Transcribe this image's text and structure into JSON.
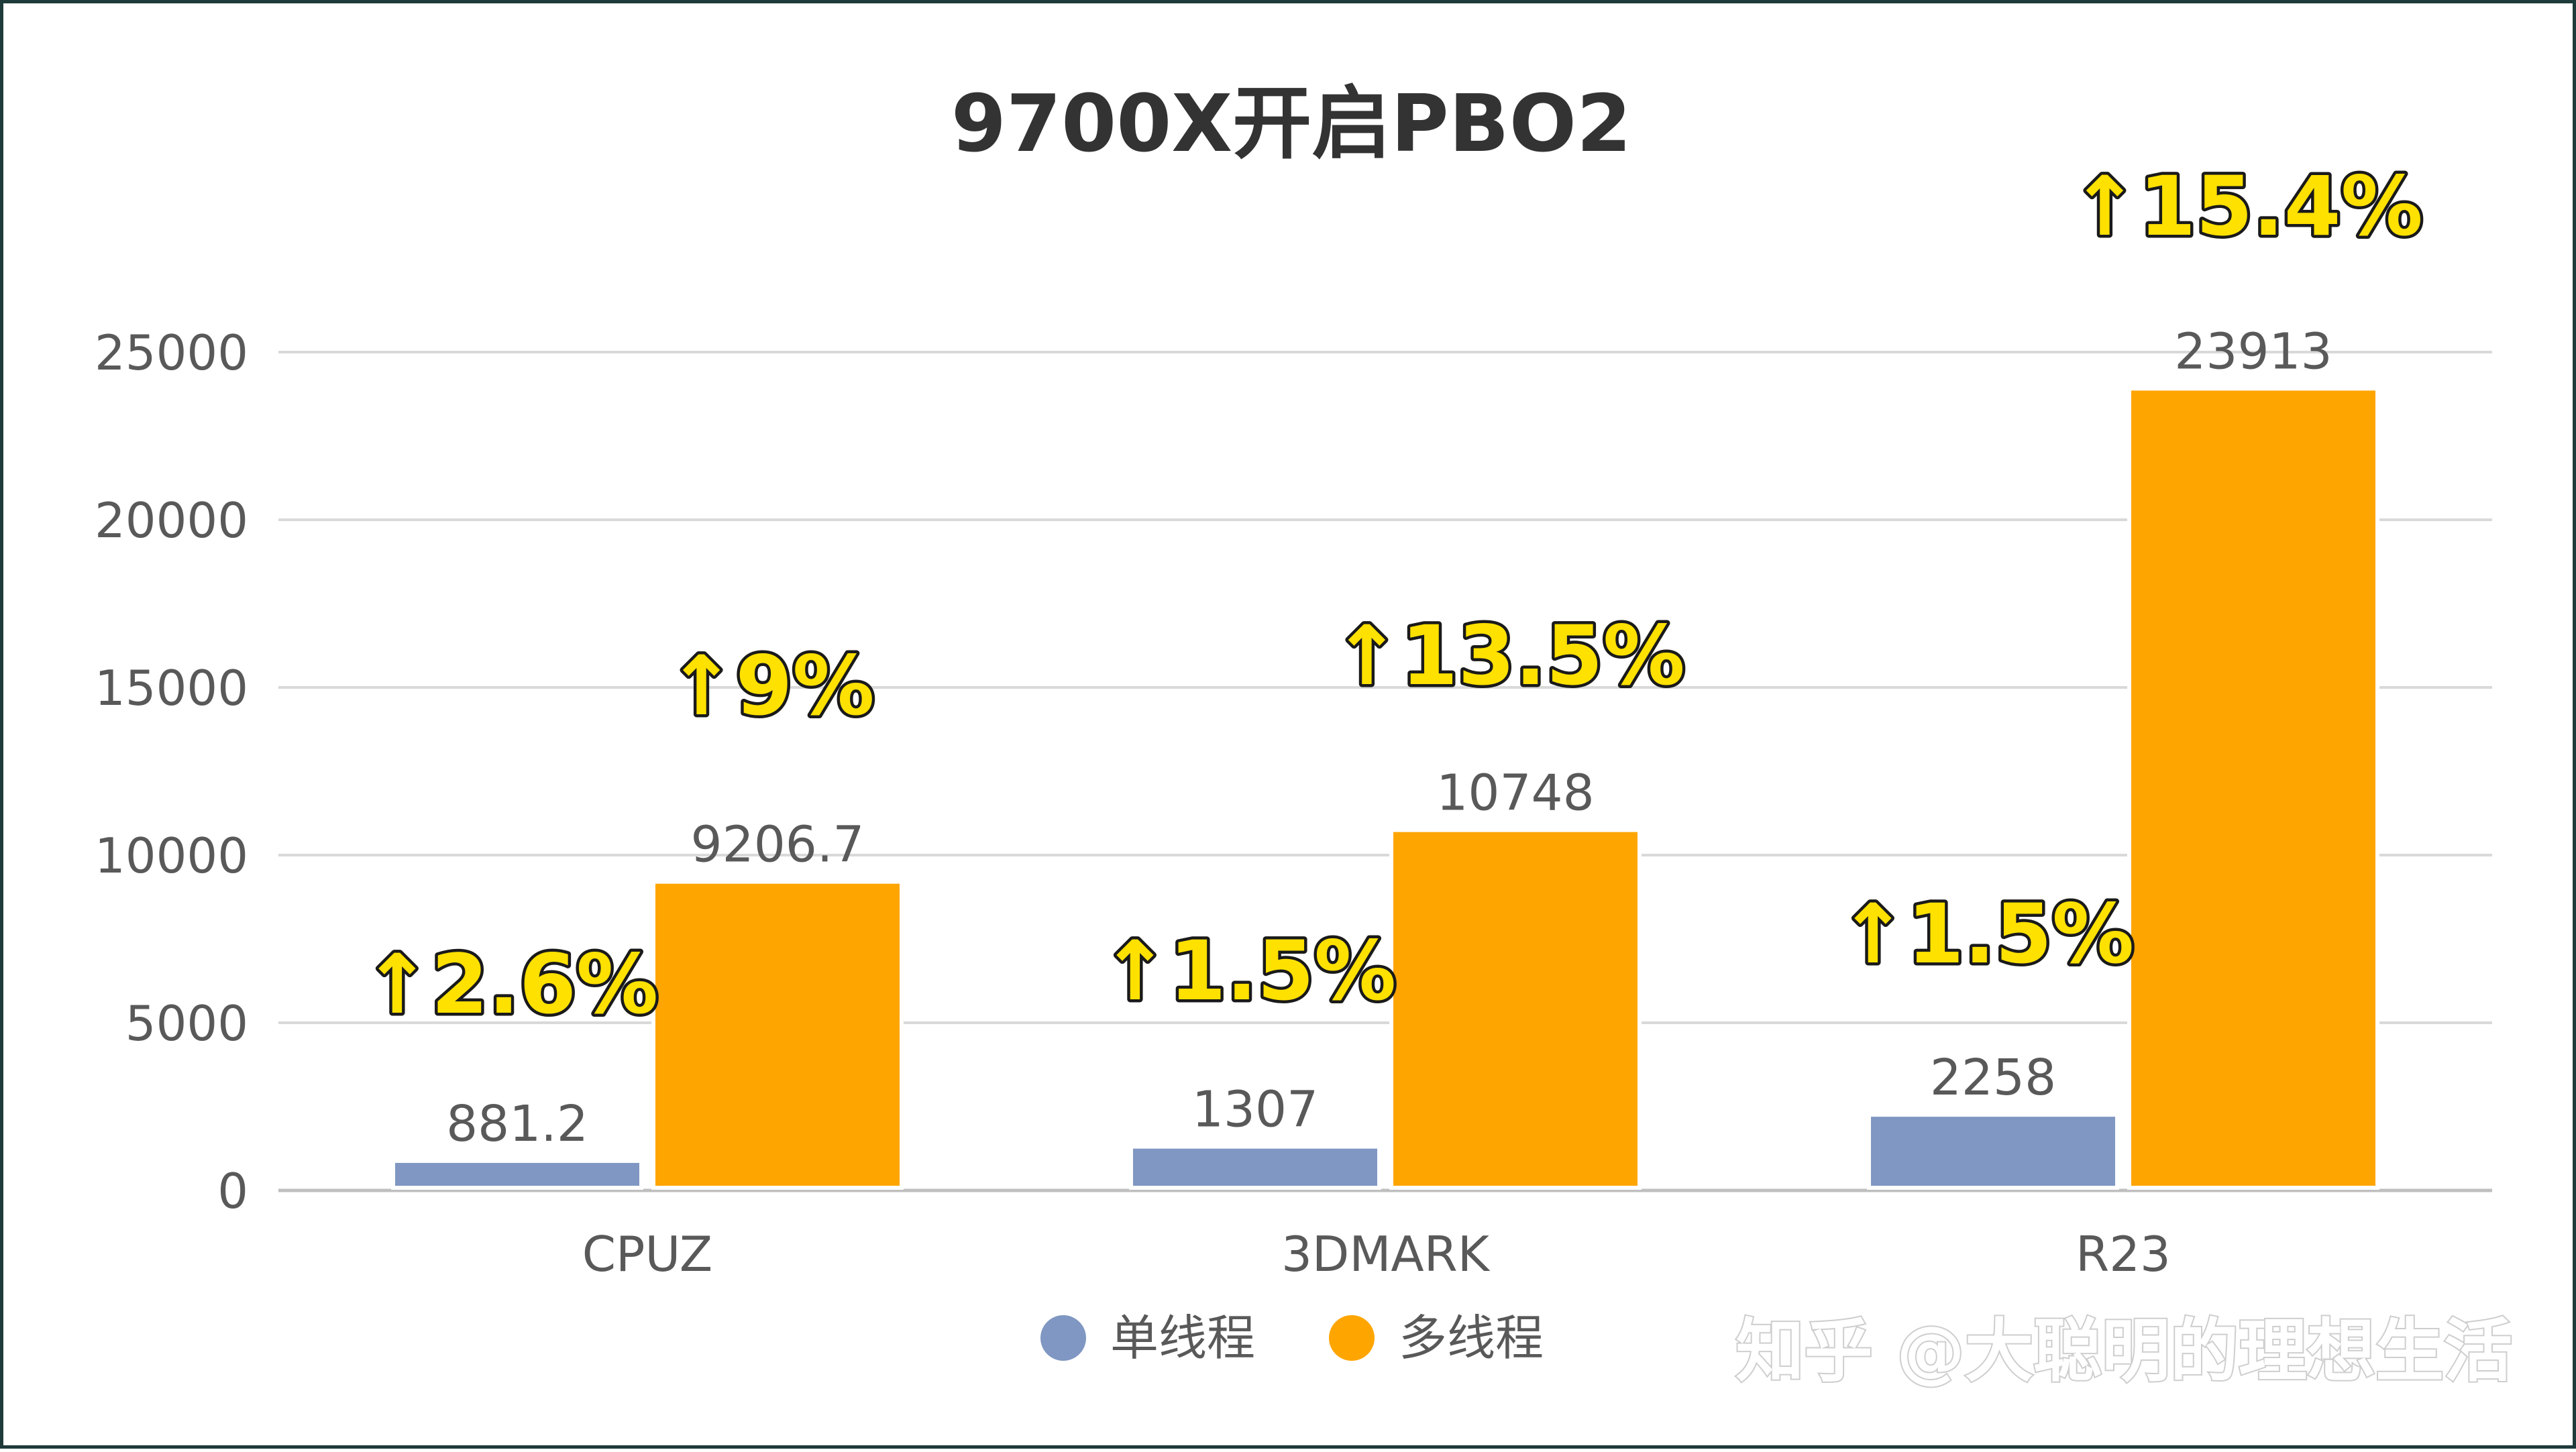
{
  "chart_data": {
    "type": "bar",
    "title": "9700X开启PBO2",
    "categories": [
      "CPUZ",
      "3DMARK",
      "R23"
    ],
    "series": [
      {
        "name": "单线程",
        "values": [
          881.2,
          1307,
          2258
        ],
        "labels": [
          "881.2",
          "1307",
          "2258"
        ],
        "color": "#7f97c2"
      },
      {
        "name": "多线程",
        "values": [
          9206.7,
          10748,
          23913
        ],
        "labels": [
          "9206.7",
          "10748",
          "23913"
        ],
        "color": "#ffa500"
      }
    ],
    "ylim": [
      0,
      25000
    ],
    "yticks": [
      0,
      5000,
      10000,
      15000,
      20000,
      25000
    ],
    "grid": true,
    "legend_position": "bottom",
    "annotations": [
      {
        "text": "↑2.6%",
        "category": "CPUZ",
        "series": "单线程"
      },
      {
        "text": "↑9%",
        "category": "CPUZ",
        "series": "多线程"
      },
      {
        "text": "↑1.5%",
        "category": "3DMARK",
        "series": "单线程"
      },
      {
        "text": "↑13.5%",
        "category": "3DMARK",
        "series": "多线程"
      },
      {
        "text": "↑1.5%",
        "category": "R23",
        "series": "单线程"
      },
      {
        "text": "↑15.4%",
        "category": "R23",
        "series": "多线程"
      }
    ]
  },
  "watermark": "知乎 @大聪明的理想生活",
  "colors": {
    "frame_border": "#1f3a3a",
    "gridline": "#d9d9d9",
    "axis_line": "#bfbfbf",
    "annotation_fill": "#ffe100"
  }
}
